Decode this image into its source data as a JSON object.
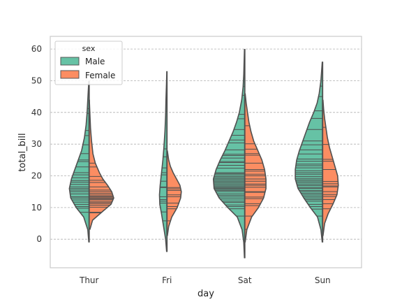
{
  "chart_data": {
    "type": "violin",
    "split": true,
    "inner": "stick",
    "xlabel": "day",
    "ylabel": "total_bill",
    "categories": [
      "Thur",
      "Fri",
      "Sat",
      "Sun"
    ],
    "yticks": [
      0,
      10,
      20,
      30,
      40,
      50,
      60
    ],
    "ylim": [
      -9,
      64
    ],
    "grid": true,
    "legend": {
      "title": "sex",
      "position": "top-left"
    },
    "series": [
      {
        "name": "Male",
        "color": "#66c2a5",
        "violins": [
          {
            "category": "Thur",
            "range": [
              -1,
              50
            ],
            "profile": [
              [
                -1,
                0.01
              ],
              [
                3,
                0.04
              ],
              [
                7,
                0.16
              ],
              [
                10,
                0.38
              ],
              [
                13,
                0.54
              ],
              [
                16,
                0.58
              ],
              [
                19,
                0.52
              ],
              [
                22,
                0.42
              ],
              [
                25,
                0.32
              ],
              [
                28,
                0.22
              ],
              [
                32,
                0.14
              ],
              [
                36,
                0.09
              ],
              [
                40,
                0.06
              ],
              [
                44,
                0.04
              ],
              [
                48,
                0.02
              ],
              [
                50,
                0.01
              ]
            ],
            "sticks": [
              8.5,
              9.8,
              10.3,
              11.0,
              11.7,
              12.4,
              13.0,
              13.4,
              14.3,
              15.0,
              15.5,
              16.0,
              16.5,
              17.3,
              18.0,
              18.5,
              19.4,
              20.3,
              21.0,
              22.8,
              24.5,
              25.0,
              27.0,
              29.8,
              32.7,
              34.3,
              39.7,
              41.2,
              48.3
            ]
          },
          {
            "category": "Fri",
            "range": [
              -4,
              53
            ],
            "profile": [
              [
                -4,
                0.01
              ],
              [
                0,
                0.04
              ],
              [
                4,
                0.1
              ],
              [
                8,
                0.16
              ],
              [
                11,
                0.21
              ],
              [
                14,
                0.22
              ],
              [
                17,
                0.2
              ],
              [
                21,
                0.16
              ],
              [
                25,
                0.12
              ],
              [
                29,
                0.09
              ],
              [
                34,
                0.06
              ],
              [
                39,
                0.04
              ],
              [
                44,
                0.03
              ],
              [
                49,
                0.015
              ],
              [
                53,
                0.005
              ]
            ],
            "sticks": [
              5.8,
              8.6,
              11.4,
              12.0,
              12.5,
              13.4,
              16.3,
              16.5,
              18.3,
              20.3,
              21.0,
              22.5,
              26.0,
              28.5,
              40.2
            ]
          },
          {
            "category": "Sat",
            "range": [
              -6,
              60
            ],
            "profile": [
              [
                -6,
                0.01
              ],
              [
                -1,
                0.03
              ],
              [
                3,
                0.08
              ],
              [
                7,
                0.22
              ],
              [
                10,
                0.5
              ],
              [
                13,
                0.75
              ],
              [
                16,
                0.9
              ],
              [
                19,
                0.92
              ],
              [
                22,
                0.84
              ],
              [
                25,
                0.72
              ],
              [
                28,
                0.58
              ],
              [
                31,
                0.46
              ],
              [
                34,
                0.34
              ],
              [
                37,
                0.24
              ],
              [
                40,
                0.16
              ],
              [
                44,
                0.09
              ],
              [
                48,
                0.05
              ],
              [
                52,
                0.03
              ],
              [
                56,
                0.02
              ],
              [
                60,
                0.01
              ]
            ],
            "sticks": [
              7.3,
              9.6,
              10.3,
              10.8,
              11.6,
              12.0,
              12.7,
              13.3,
              13.8,
              14.3,
              15.0,
              15.4,
              15.7,
              16.0,
              16.3,
              16.6,
              17.0,
              17.4,
              17.8,
              18.2,
              18.6,
              19.0,
              19.4,
              19.8,
              20.3,
              20.7,
              21.0,
              22.4,
              23.3,
              24.2,
              24.5,
              25.6,
              26.4,
              26.8,
              28.2,
              30.4,
              31.3,
              32.8,
              34.6,
              38.0,
              39.4,
              45.4,
              48.2,
              50.8
            ]
          },
          {
            "category": "Sun",
            "range": [
              -1,
              56
            ],
            "profile": [
              [
                -1,
                0.01
              ],
              [
                3,
                0.05
              ],
              [
                7,
                0.15
              ],
              [
                10,
                0.36
              ],
              [
                13,
                0.55
              ],
              [
                16,
                0.72
              ],
              [
                19,
                0.8
              ],
              [
                22,
                0.8
              ],
              [
                25,
                0.76
              ],
              [
                28,
                0.68
              ],
              [
                31,
                0.58
              ],
              [
                34,
                0.48
              ],
              [
                37,
                0.38
              ],
              [
                40,
                0.26
              ],
              [
                43,
                0.16
              ],
              [
                46,
                0.1
              ],
              [
                50,
                0.05
              ],
              [
                53,
                0.03
              ],
              [
                56,
                0.01
              ]
            ],
            "sticks": [
              7.3,
              9.5,
              10.3,
              11.0,
              12.0,
              12.5,
              13.0,
              13.5,
              14.0,
              14.5,
              15.0,
              15.4,
              16.0,
              16.3,
              16.9,
              17.3,
              17.8,
              18.3,
              18.7,
              19.2,
              19.8,
              20.5,
              21.0,
              21.6,
              22.5,
              23.2,
              23.7,
              24.6,
              25.3,
              26.9,
              28.2,
              29.8,
              31.0,
              34.6,
              38.1,
              40.5,
              45.0,
              48.3
            ]
          }
        ]
      },
      {
        "name": "Female",
        "color": "#fc8d62",
        "violins": [
          {
            "category": "Thur",
            "range": [
              3,
              44
            ],
            "profile": [
              [
                3,
                0.02
              ],
              [
                6,
                0.1
              ],
              [
                9,
                0.42
              ],
              [
                11,
                0.64
              ],
              [
                13,
                0.72
              ],
              [
                15,
                0.66
              ],
              [
                17,
                0.54
              ],
              [
                19,
                0.4
              ],
              [
                21,
                0.3
              ],
              [
                24,
                0.18
              ],
              [
                27,
                0.11
              ],
              [
                31,
                0.07
              ],
              [
                35,
                0.04
              ],
              [
                40,
                0.02
              ],
              [
                44,
                0.005
              ]
            ],
            "sticks": [
              8.3,
              8.5,
              10.1,
              10.7,
              11.2,
              11.6,
              12.0,
              12.5,
              12.8,
              13.0,
              13.3,
              13.6,
              14.0,
              14.5,
              15.0,
              15.5,
              16.5,
              17.9,
              18.6,
              19.8,
              22.8,
              24.0
            ]
          },
          {
            "category": "Fri",
            "range": [
              1,
              28
            ],
            "profile": [
              [
                1,
                0.01
              ],
              [
                4,
                0.05
              ],
              [
                7,
                0.14
              ],
              [
                10,
                0.3
              ],
              [
                13,
                0.4
              ],
              [
                15,
                0.42
              ],
              [
                17,
                0.38
              ],
              [
                19,
                0.28
              ],
              [
                21,
                0.18
              ],
              [
                23,
                0.1
              ],
              [
                25,
                0.05
              ],
              [
                28,
                0.01
              ]
            ],
            "sticks": [
              5.8,
              9.6,
              10.3,
              11.4,
              13.4,
              14.0,
              15.4,
              15.9,
              16.3
            ]
          },
          {
            "category": "Sat",
            "range": [
              -1,
              46
            ],
            "profile": [
              [
                -1,
                0.01
              ],
              [
                3,
                0.06
              ],
              [
                7,
                0.2
              ],
              [
                10,
                0.4
              ],
              [
                13,
                0.55
              ],
              [
                16,
                0.62
              ],
              [
                19,
                0.62
              ],
              [
                22,
                0.58
              ],
              [
                25,
                0.5
              ],
              [
                28,
                0.38
              ],
              [
                31,
                0.26
              ],
              [
                34,
                0.18
              ],
              [
                37,
                0.12
              ],
              [
                40,
                0.08
              ],
              [
                43,
                0.04
              ],
              [
                46,
                0.01
              ]
            ],
            "sticks": [
              3.1,
              7.3,
              10.6,
              11.2,
              12.8,
              13.3,
              14.8,
              15.0,
              16.4,
              17.0,
              17.4,
              18.3,
              19.0,
              20.0,
              20.5,
              21.5,
              22.0,
              24.0,
              26.5,
              27.0,
              28.4,
              30.1,
              35.8,
              44.3
            ]
          },
          {
            "category": "Sun",
            "range": [
              1,
              44
            ],
            "profile": [
              [
                1,
                0.01
              ],
              [
                5,
                0.06
              ],
              [
                8,
                0.16
              ],
              [
                11,
                0.3
              ],
              [
                14,
                0.42
              ],
              [
                17,
                0.46
              ],
              [
                20,
                0.44
              ],
              [
                23,
                0.36
              ],
              [
                26,
                0.28
              ],
              [
                29,
                0.2
              ],
              [
                32,
                0.14
              ],
              [
                35,
                0.1
              ],
              [
                38,
                0.06
              ],
              [
                41,
                0.03
              ],
              [
                44,
                0.01
              ]
            ],
            "sticks": [
              9.6,
              11.2,
              12.5,
              13.5,
              14.1,
              15.0,
              16.5,
              16.8,
              17.5,
              18.2,
              22.0,
              24.6,
              25.2,
              29.9,
              35.3
            ]
          }
        ]
      }
    ]
  }
}
